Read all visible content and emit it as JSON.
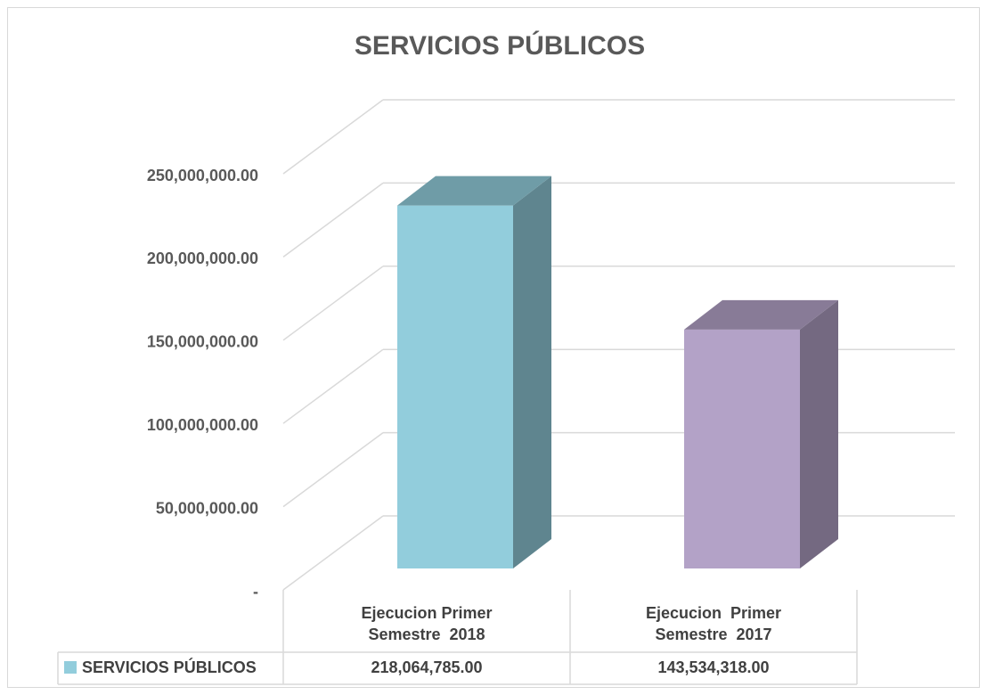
{
  "chart_data": {
    "type": "bar3d",
    "title": "SERVICIOS PÚBLICOS",
    "categories": [
      "Ejecucion Primer Semestre  2018",
      "Ejecucion  Primer Semestre  2017"
    ],
    "series": [
      {
        "name": "SERVICIOS PÚBLICOS",
        "color": "#92cddc",
        "colors": [
          "#92cddc",
          "#b3a2c7"
        ],
        "values": [
          218064785.0,
          143534318.0
        ],
        "value_labels": [
          "218,064,785.00",
          "143,534,318.00"
        ]
      }
    ],
    "ylim": [
      0,
      250000000
    ],
    "yticks": [
      {
        "value": 0,
        "label": "-"
      },
      {
        "value": 50000000,
        "label": "50,000,000.00"
      },
      {
        "value": 100000000,
        "label": "100,000,000.00"
      },
      {
        "value": 150000000,
        "label": "150,000,000.00"
      },
      {
        "value": 200000000,
        "label": "200,000,000.00"
      },
      {
        "value": 250000000,
        "label": "250,000,000.00"
      }
    ],
    "grid": true,
    "data_table": true
  }
}
